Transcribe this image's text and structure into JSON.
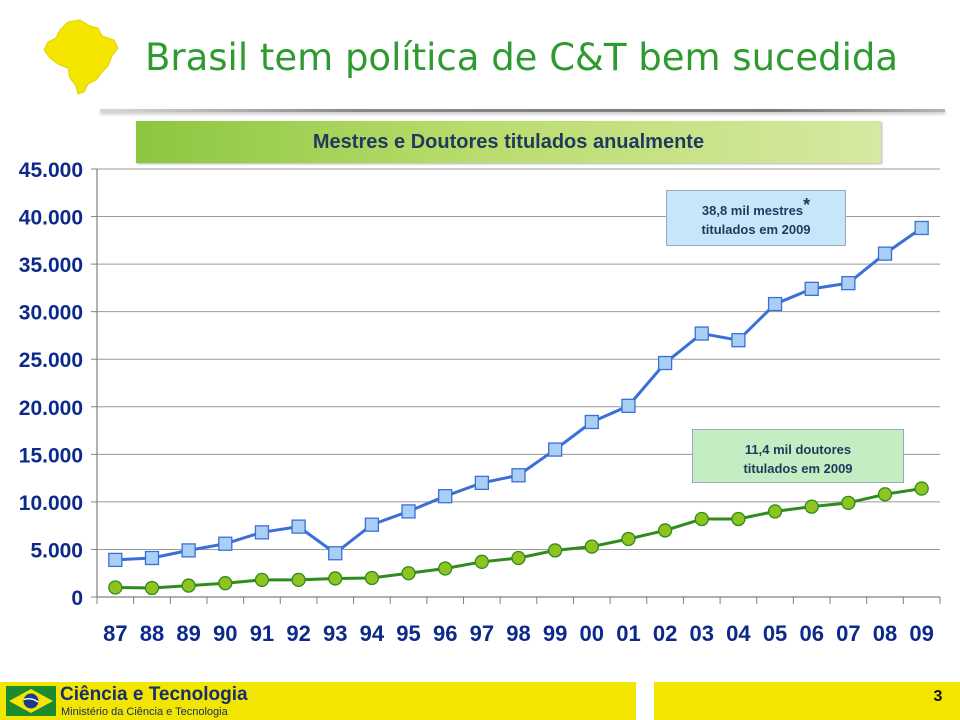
{
  "header": {
    "title": "Brasil tem política de C&T bem sucedida",
    "map_icon": "brazil-map-icon",
    "map_color": "#f5e600"
  },
  "chart_data": {
    "type": "line",
    "title": "Mestres e Doutores titulados anualmente",
    "categories": [
      "87",
      "88",
      "89",
      "90",
      "91",
      "92",
      "93",
      "94",
      "95",
      "96",
      "97",
      "98",
      "99",
      "00",
      "01",
      "02",
      "03",
      "04",
      "05",
      "06",
      "07",
      "08",
      "09"
    ],
    "series": [
      {
        "values": [
          3900,
          4100,
          4900,
          5600,
          6800,
          7400,
          4600,
          7600,
          9000,
          10600,
          12000,
          12800,
          15500,
          18400,
          20100,
          24600,
          27700,
          27000,
          30800,
          32400,
          33000,
          36100,
          38800
        ],
        "color": "#3a6fd8",
        "marker": "square",
        "marker_color": "#a9cff5"
      },
      {
        "values": [
          1000,
          950,
          1200,
          1450,
          1800,
          1800,
          1950,
          2000,
          2500,
          3000,
          3700,
          4100,
          4900,
          5300,
          6100,
          7000,
          8200,
          8200,
          9000,
          9500,
          9900,
          10800,
          11400
        ],
        "color": "#2e8b1e",
        "marker": "circle",
        "marker_color": "#8fc31f"
      }
    ],
    "y_ticks": [
      "0",
      "5.000",
      "10.000",
      "15.000",
      "20.000",
      "25.000",
      "30.000",
      "35.000",
      "40.000",
      "45.000"
    ],
    "ylim": [
      0,
      45000
    ],
    "grid": true,
    "annotations": {
      "mestres_line1": "38,8 mil mestres",
      "mestres_star": "*",
      "mestres_line2": "titulados em 2009",
      "doutores_line1": "11,4 mil doutores",
      "doutores_line2": "titulados em 2009"
    }
  },
  "footer": {
    "org_name": "Ciência e Tecnologia",
    "org_sub": "Ministério da Ciência e Tecnologia",
    "page_number": "3",
    "accent": "#f2e600"
  }
}
